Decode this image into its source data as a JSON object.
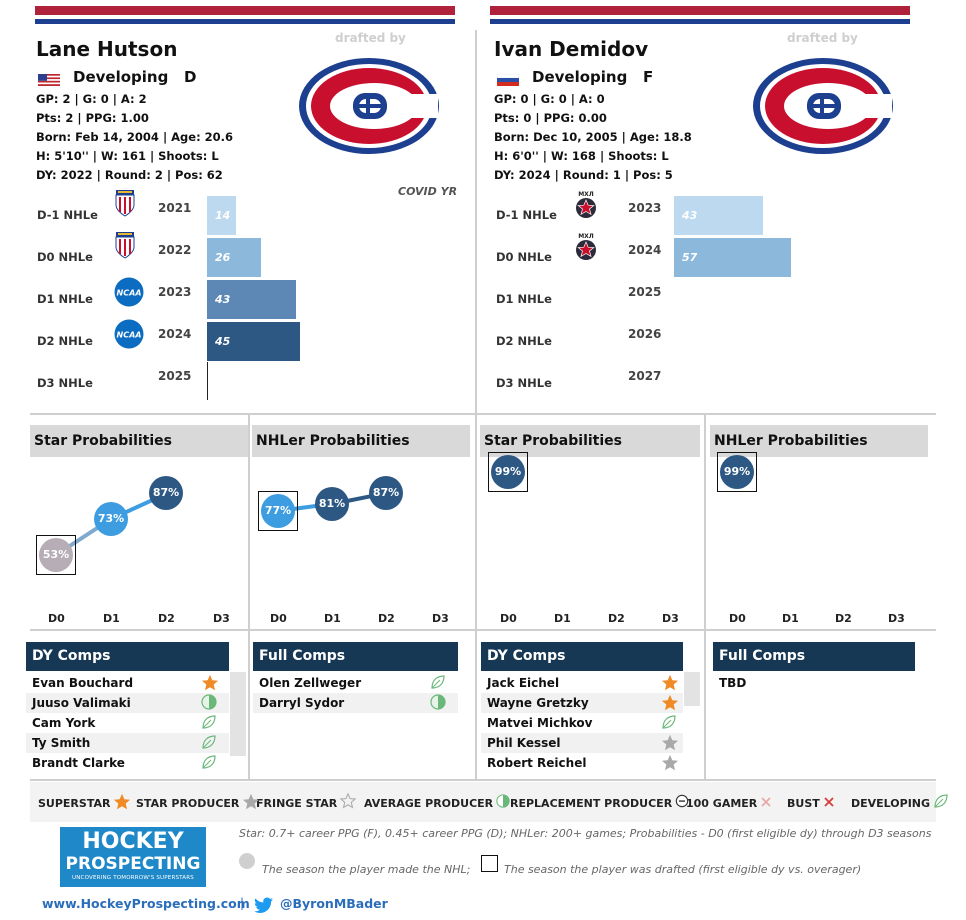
{
  "players": [
    {
      "name": "Lane Hutson",
      "drafted_by_label": "drafted by",
      "status": "Developing",
      "position": "D",
      "stats": [
        "GP: 2 | G: 0 | A: 2",
        "Pts: 2 | PPG: 1.00",
        "Born: Feb 14, 2004 | Age: 20.6",
        "H: 5'10'' | W: 161 | Shoots: L",
        "DY: 2022 | Round: 2 | Pos: 62"
      ],
      "note": "COVID YR",
      "flag": "usa-flag",
      "team_logo": "montreal-canadiens-logo",
      "seasons": [
        {
          "label": "D-1 NHLe",
          "year": "2021",
          "value": 14,
          "value_label": "14",
          "league_icon": "usntdp-logo",
          "color": "#bcd9ef"
        },
        {
          "label": "D0 NHLe",
          "year": "2022",
          "value": 26,
          "value_label": "26",
          "league_icon": "usntdp-logo",
          "color": "#8cb8dc"
        },
        {
          "label": "D1 NHLe",
          "year": "2023",
          "value": 43,
          "value_label": "43",
          "league_icon": "ncaa-logo",
          "color": "#5d88b5"
        },
        {
          "label": "D2 NHLe",
          "year": "2024",
          "value": 45,
          "value_label": "45",
          "league_icon": "ncaa-logo",
          "color": "#2c5883"
        },
        {
          "label": "D3 NHLe",
          "year": "2025",
          "value": null,
          "value_label": "",
          "league_icon": "",
          "color": ""
        }
      ],
      "star_title": "Star Probabilities",
      "nhler_title": "NHLer Probabilities",
      "star_probs": [
        {
          "x": "D0",
          "value": 53,
          "label": "53%",
          "color": "#b6adb6",
          "drafted_marker": true
        },
        {
          "x": "D1",
          "value": 73,
          "label": "73%",
          "color": "#3d9de0",
          "drafted_marker": false
        },
        {
          "x": "D2",
          "value": 87,
          "label": "87%",
          "color": "#2c5883",
          "drafted_marker": false
        }
      ],
      "nhler_probs": [
        {
          "x": "D0",
          "value": 77,
          "label": "77%",
          "color": "#3d9de0",
          "drafted_marker": true
        },
        {
          "x": "D1",
          "value": 81,
          "label": "81%",
          "color": "#2c5883",
          "drafted_marker": false
        },
        {
          "x": "D2",
          "value": 87,
          "label": "87%",
          "color": "#2c5883",
          "drafted_marker": false
        }
      ],
      "dy_comps_title": "DY Comps",
      "full_comps_title": "Full Comps",
      "dy_comps": [
        {
          "name": "Evan Bouchard",
          "icon": "superstar-icon"
        },
        {
          "name": "Juuso Valimaki",
          "icon": "replacement-producer-icon"
        },
        {
          "name": "Cam York",
          "icon": "developing-icon"
        },
        {
          "name": "Ty Smith",
          "icon": "developing-icon"
        },
        {
          "name": "Brandt Clarke",
          "icon": "developing-icon"
        }
      ],
      "full_comps": [
        {
          "name": "Olen Zellweger",
          "icon": "developing-icon"
        },
        {
          "name": "Darryl Sydor",
          "icon": "replacement-producer-icon"
        }
      ]
    },
    {
      "name": "Ivan Demidov",
      "drafted_by_label": "drafted by",
      "status": "Developing",
      "position": "F",
      "stats": [
        "GP: 0 | G: 0 | A: 0",
        "Pts: 0 | PPG: 0.00",
        "Born: Dec 10, 2005 | Age: 18.8",
        "H: 6'0'' | W: 168 | Shoots: L",
        "DY: 2024 | Round: 1 | Pos: 5"
      ],
      "note": "",
      "flag": "russia-flag",
      "team_logo": "montreal-canadiens-logo",
      "seasons": [
        {
          "label": "D-1 NHLe",
          "year": "2023",
          "value": 43,
          "value_label": "43",
          "league_icon": "mhl-logo",
          "color": "#bcd9ef"
        },
        {
          "label": "D0 NHLe",
          "year": "2024",
          "value": 57,
          "value_label": "57",
          "league_icon": "mhl-logo",
          "color": "#8cb8dc"
        },
        {
          "label": "D1 NHLe",
          "year": "2025",
          "value": null,
          "value_label": "",
          "league_icon": "",
          "color": ""
        },
        {
          "label": "D2 NHLe",
          "year": "2026",
          "value": null,
          "value_label": "",
          "league_icon": "",
          "color": ""
        },
        {
          "label": "D3 NHLe",
          "year": "2027",
          "value": null,
          "value_label": "",
          "league_icon": "",
          "color": ""
        }
      ],
      "star_title": "Star Probabilities",
      "nhler_title": "NHLer Probabilities",
      "star_probs": [
        {
          "x": "D0",
          "value": 99,
          "label": "99%",
          "color": "#2c5883",
          "drafted_marker": true
        }
      ],
      "nhler_probs": [
        {
          "x": "D0",
          "value": 99,
          "label": "99%",
          "color": "#2c5883",
          "drafted_marker": true
        }
      ],
      "dy_comps_title": "DY Comps",
      "full_comps_title": "Full Comps",
      "dy_comps": [
        {
          "name": "Jack Eichel",
          "icon": "superstar-icon"
        },
        {
          "name": "Wayne Gretzky",
          "icon": "superstar-icon"
        },
        {
          "name": "Matvei Michkov",
          "icon": "developing-icon"
        },
        {
          "name": "Phil Kessel",
          "icon": "star-producer-icon"
        },
        {
          "name": "Robert Reichel",
          "icon": "star-producer-icon"
        }
      ],
      "full_comps": [
        {
          "name": "TBD",
          "icon": ""
        }
      ]
    }
  ],
  "prob_axis": [
    "D0",
    "D1",
    "D2",
    "D3"
  ],
  "chart_data": {
    "type": "bar",
    "categories": [
      "D-1 NHLe",
      "D0 NHLe",
      "D1 NHLe",
      "D2 NHLe",
      "D3 NHLe"
    ],
    "series": [
      {
        "name": "Lane Hutson",
        "values": [
          14,
          26,
          43,
          45,
          null
        ]
      },
      {
        "name": "Ivan Demidov",
        "values": [
          43,
          57,
          null,
          null,
          null
        ]
      }
    ]
  },
  "legend": [
    {
      "label": "SUPERSTAR",
      "icon": "superstar-icon"
    },
    {
      "label": "STAR PRODUCER",
      "icon": "star-producer-icon"
    },
    {
      "label": "FRINGE STAR",
      "icon": "fringe-star-icon"
    },
    {
      "label": "AVERAGE PRODUCER",
      "icon": "average-producer-icon"
    },
    {
      "label": "REPLACEMENT PRODUCER",
      "icon": "replacement-producer-icon"
    },
    {
      "label": "100 GAMER",
      "icon": "100-gamer-icon"
    },
    {
      "label": "BUST",
      "icon": "bust-icon"
    },
    {
      "label": "DEVELOPING",
      "icon": "developing-icon"
    }
  ],
  "footer": {
    "logo_line1": "HOCKEY",
    "logo_line2": "PROSPECTING",
    "logo_tagline": "UNCOVERING TOMORROW'S SUPERSTARS",
    "definition": "Star: 0.7+ career PPG (F), 0.45+ career PPG (D); NHLer: 200+ games; Probabilities - D0 (first eligible dy) through D3 seasons",
    "made_nhl_note": "The season the player made the NHL;",
    "drafted_note": "The season the player was drafted (first eligible dy vs. overager)",
    "website": "www.HockeyProspecting.com",
    "separator": "|",
    "twitter": "@ByronMBader"
  },
  "colors": {
    "header_red": "#b0213b",
    "header_blue": "#1d3f8f",
    "comp_header": "#163855",
    "logo_blue": "#1e88c8"
  }
}
